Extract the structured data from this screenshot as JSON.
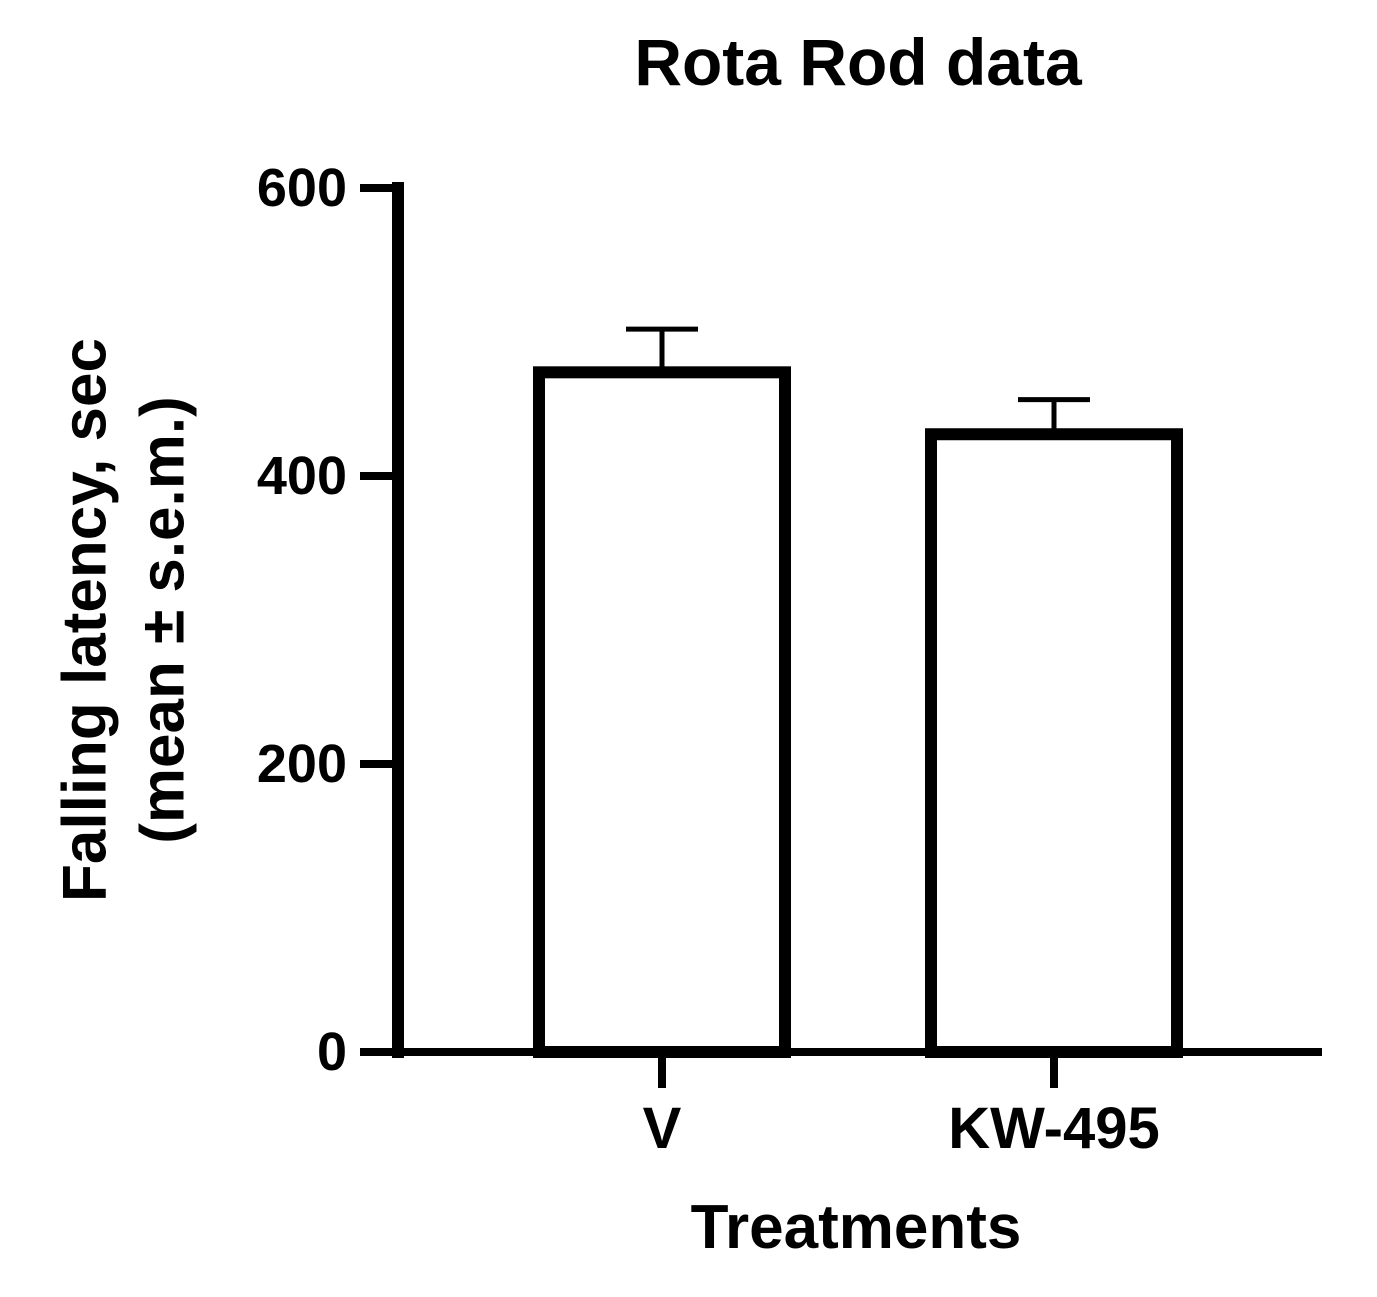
{
  "chart_data": {
    "type": "bar",
    "title": "Rota Rod data",
    "xlabel": "Treatments",
    "ylabel_lines": [
      "Falling latency, sec",
      "(mean ± s.e.m.)"
    ],
    "categories": [
      "V",
      "KW-495"
    ],
    "values": [
      472,
      429
    ],
    "errors": [
      30,
      24
    ],
    "error_bars": "upper",
    "ylim": [
      0,
      600
    ],
    "yticks": [
      0,
      200,
      400,
      600
    ],
    "ytick_labels": [
      "0",
      "200",
      "400",
      "600"
    ],
    "grid": false,
    "legend": "none",
    "bar_fill": "#ffffff",
    "bar_stroke": "#000000"
  }
}
